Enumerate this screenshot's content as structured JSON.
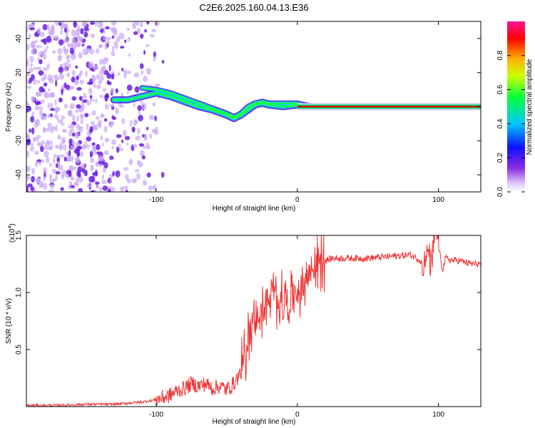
{
  "title": "C2E6.2025.160.04.13.E36",
  "colors": {
    "snr_line": "#ee3333",
    "carrier_line": "#dd0000",
    "noise_purple": "#7a33ee",
    "axis": "#000000"
  },
  "chart_data": [
    {
      "type": "heatmap",
      "name": "spectrogram",
      "xlabel": "Height of straight line (km)",
      "ylabel": "Frequency (Hz)",
      "xlim": [
        -192,
        130
      ],
      "ylim": [
        -50,
        50
      ],
      "xticks": [
        -100,
        0,
        100
      ],
      "xtick_labels": [
        "-100",
        "0",
        "100"
      ],
      "yticks": [
        -40,
        -20,
        0,
        20,
        40
      ],
      "ytick_labels": [
        "-40",
        "-20",
        "0",
        "20",
        "40"
      ],
      "colorbar": {
        "label": "Normalized spectral amplitude",
        "ticks": [
          0.0,
          0.2,
          0.4,
          0.6,
          0.8
        ],
        "tick_labels": [
          "0.0",
          "0.2",
          "0.4",
          "0.6",
          "0.8"
        ],
        "colormap": "rainbow (white-violet-blue-cyan-green-yellow-red-magenta)"
      },
      "carrier_frequency_track": {
        "height_km": [
          -130,
          -120,
          -110,
          -100,
          -90,
          -80,
          -70,
          -60,
          -50,
          -45,
          -40,
          -35,
          -30,
          -25,
          -20,
          -10,
          0,
          10,
          50,
          130
        ],
        "frequency_hz": [
          4,
          4,
          6,
          8,
          6,
          3,
          0,
          -2,
          -5,
          -7,
          -5,
          -2,
          1,
          2,
          1,
          0,
          1,
          0,
          0,
          0
        ],
        "upper_branch_hz": [
          null,
          null,
          11,
          10,
          8,
          5,
          2,
          -1,
          -4,
          -6,
          -4,
          0,
          2,
          3,
          2,
          2,
          2,
          0,
          0,
          0
        ]
      },
      "noise_region_km": [
        -192,
        -105
      ],
      "strong_carrier_region_km": [
        0,
        130
      ]
    },
    {
      "type": "line",
      "name": "snr",
      "xlabel": "Height of straight line (km)",
      "ylabel": "SNR (10 * v/v)",
      "scale_note": "(x10",
      "scale_exponent": "4",
      "xlim": [
        -192,
        130
      ],
      "ylim": [
        0,
        1.5
      ],
      "xticks": [
        -100,
        0,
        100
      ],
      "xtick_labels": [
        "-100",
        "0",
        "100"
      ],
      "yticks": [
        0.5,
        1.0,
        1.5
      ],
      "ytick_labels": [
        "0.5",
        "1.0",
        "1.5"
      ],
      "series": [
        {
          "x": [
            -192,
            -170,
            -150,
            -130,
            -120,
            -110,
            -100,
            -95,
            -90,
            -85,
            -80,
            -75,
            -70,
            -65,
            -60,
            -55,
            -50,
            -45,
            -40,
            -37,
            -35,
            -32,
            -30,
            -27,
            -25,
            -22,
            -20,
            -17,
            -15,
            -12,
            -10,
            -7,
            -5,
            -2,
            0,
            3,
            5,
            8,
            10,
            15,
            20,
            25,
            30,
            40,
            50,
            60,
            70,
            80,
            85,
            90,
            93,
            95,
            97,
            98,
            100,
            103,
            105,
            110,
            115,
            120,
            125,
            130
          ],
          "y": [
            0.01,
            0.01,
            0.02,
            0.02,
            0.03,
            0.04,
            0.06,
            0.08,
            0.1,
            0.14,
            0.16,
            0.2,
            0.18,
            0.2,
            0.16,
            0.18,
            0.15,
            0.2,
            0.3,
            0.45,
            0.6,
            0.75,
            0.7,
            0.85,
            0.8,
            0.95,
            0.9,
            1.0,
            0.9,
            1.0,
            0.85,
            0.95,
            0.9,
            1.02,
            1.0,
            1.05,
            1.1,
            1.15,
            1.2,
            1.25,
            1.28,
            1.3,
            1.3,
            1.3,
            1.3,
            1.31,
            1.32,
            1.33,
            1.3,
            1.25,
            1.35,
            1.2,
            1.45,
            1.55,
            1.4,
            1.2,
            1.3,
            1.28,
            1.28,
            1.26,
            1.25,
            1.25
          ]
        }
      ]
    }
  ]
}
